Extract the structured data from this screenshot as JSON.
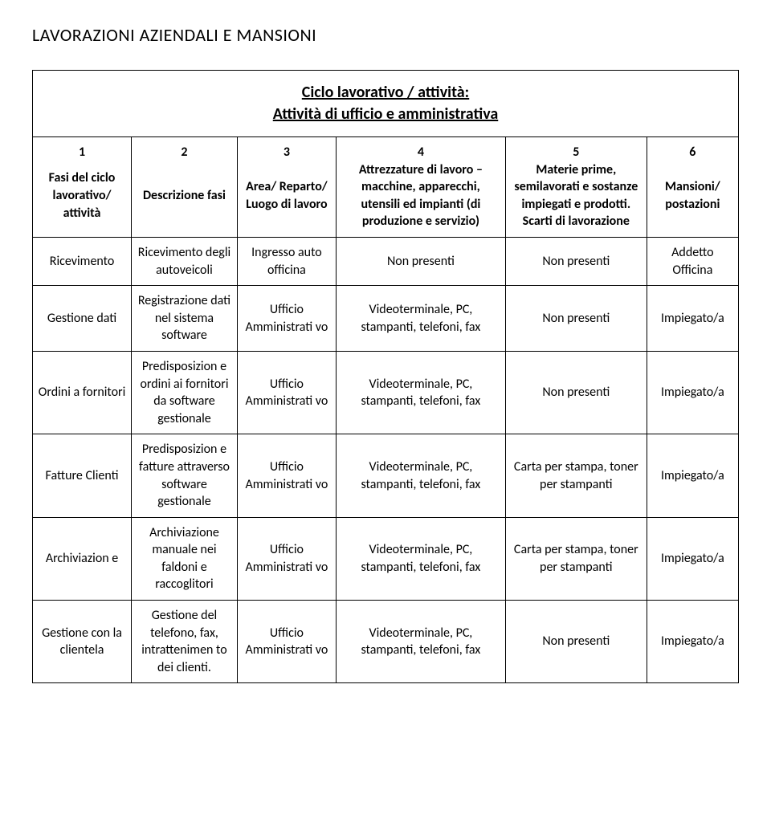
{
  "page_title": "LAVORAZIONI AZIENDALI E MANSIONI",
  "subtitle_line1": "Ciclo lavorativo / attività:",
  "subtitle_line2": "Attività di ufficio e amministrativa",
  "header": {
    "c1_num": "1",
    "c2_num": "2",
    "c3_num": "3",
    "c4_num": "4",
    "c5_num": "5",
    "c6_num": "6",
    "c1_label": "Fasi del ciclo lavorativo/ attività",
    "c2_label": "Descrizione fasi",
    "c3_label": "Area/ Reparto/ Luogo di lavoro",
    "c4_label": "Attrezzature di lavoro – macchine, apparecchi, utensili ed impianti (di produzione e servizio)",
    "c5_label": "Materie prime, semilavorati e sostanze impiegati e prodotti. Scarti di lavorazione",
    "c6_label": "Mansioni/ postazioni"
  },
  "rows": [
    {
      "c1": "Ricevimento",
      "c2": "Ricevimento degli autoveicoli",
      "c3": "Ingresso auto officina",
      "c4": "Non presenti",
      "c5": "Non presenti",
      "c6": "Addetto Officina"
    },
    {
      "c1": "Gestione dati",
      "c2": "Registrazione dati nel sistema software",
      "c3": "Ufficio Amministrati vo",
      "c4": "Videoterminale, PC, stampanti, telefoni, fax",
      "c5": "Non presenti",
      "c6": "Impiegato/a"
    },
    {
      "c1": "Ordini a fornitori",
      "c2": "Predisposizion e ordini ai fornitori da software gestionale",
      "c3": "Ufficio Amministrati vo",
      "c4": "Videoterminale, PC, stampanti, telefoni, fax",
      "c5": "Non presenti",
      "c6": "Impiegato/a"
    },
    {
      "c1": "Fatture Clienti",
      "c2": "Predisposizion e fatture attraverso software gestionale",
      "c3": "Ufficio Amministrati vo",
      "c4": "Videoterminale, PC, stampanti, telefoni, fax",
      "c5": "Carta per stampa, toner per stampanti",
      "c6": "Impiegato/a"
    },
    {
      "c1": "Archiviazion e",
      "c2": "Archiviazione manuale nei faldoni e raccoglitori",
      "c3": "Ufficio Amministrati vo",
      "c4": "Videoterminale, PC, stampanti, telefoni, fax",
      "c5": "Carta per stampa, toner per stampanti",
      "c6": "Impiegato/a"
    },
    {
      "c1": "Gestione con la clientela",
      "c2": "Gestione del telefono, fax, intrattenimen to dei clienti.",
      "c3": "Ufficio Amministrati vo",
      "c4": "Videoterminale, PC, stampanti, telefoni, fax",
      "c5": "Non presenti",
      "c6": "Impiegato/a"
    }
  ],
  "style": {
    "background_color": "#ffffff",
    "text_color": "#000000",
    "border_color": "#000000",
    "title_fontsize": 22,
    "subtitle_fontsize": 20,
    "cell_fontsize": 16,
    "font_family": "Calibri, Arial, sans-serif"
  }
}
